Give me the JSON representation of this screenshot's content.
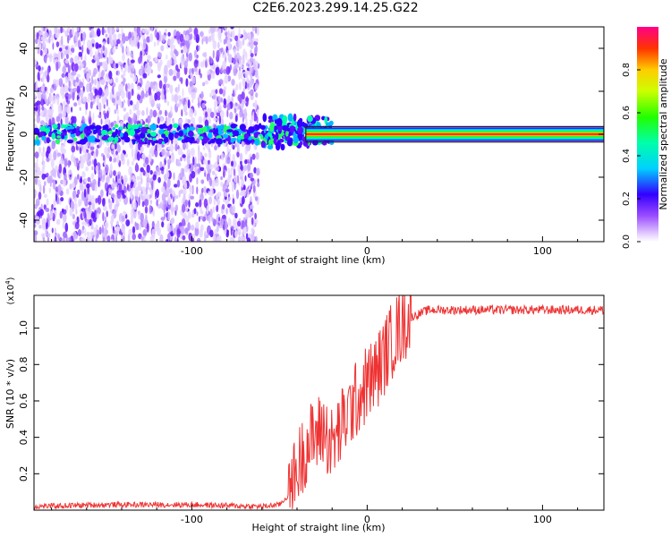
{
  "title": "C2E6.2023.299.14.25.G22",
  "chart_data": [
    {
      "type": "heatmap",
      "xlabel": "Height of straight line (km)",
      "ylabel": "Frequency (Hz)",
      "xlim": [
        -190,
        135
      ],
      "ylim": [
        -50,
        50
      ],
      "xticks": [
        -100,
        0,
        100
      ],
      "yticks": [
        -40,
        -20,
        0,
        20,
        40
      ],
      "colorbar": {
        "label": "Normalized spectral amplitude",
        "range": [
          0.0,
          1.0
        ],
        "ticks": [
          "0.0",
          "0.2",
          "0.4",
          "0.6",
          "0.8"
        ]
      },
      "description_values": {
        "noise_region_x": [
          -190,
          -62
        ],
        "signal_center_freq_hz": 0,
        "signal_band_x": [
          -62,
          135
        ],
        "peak_amplitude": 0.95
      }
    },
    {
      "type": "line",
      "xlabel": "Height of straight line (km)",
      "ylabel": "SNR (10 * v/v)",
      "yscale_label": "(x10",
      "yscale_exp": "4",
      "yscale_close": ")",
      "xlim": [
        -190,
        135
      ],
      "ylim": [
        0.0,
        1.18
      ],
      "xticks": [
        -100,
        0,
        100
      ],
      "yticks": [
        "0.2",
        "0.4",
        "0.6",
        "0.8",
        "1.0"
      ],
      "series": [
        {
          "color": "#ee3333",
          "x": [
            -190,
            -150,
            -100,
            -60,
            -50,
            -45,
            -40,
            -35,
            -30,
            -25,
            -20,
            -15,
            -10,
            -5,
            0,
            5,
            10,
            15,
            20,
            25,
            30,
            35,
            40,
            60,
            80,
            100,
            120,
            135
          ],
          "y": [
            0.02,
            0.03,
            0.03,
            0.02,
            0.03,
            0.08,
            0.22,
            0.35,
            0.4,
            0.45,
            0.35,
            0.45,
            0.55,
            0.62,
            0.7,
            0.75,
            0.85,
            0.95,
            1.02,
            1.06,
            1.08,
            1.1,
            1.1,
            1.1,
            1.1,
            1.1,
            1.1,
            1.1
          ]
        }
      ]
    }
  ],
  "colors": {
    "signal": "#ee3333",
    "axis": "#000000"
  }
}
